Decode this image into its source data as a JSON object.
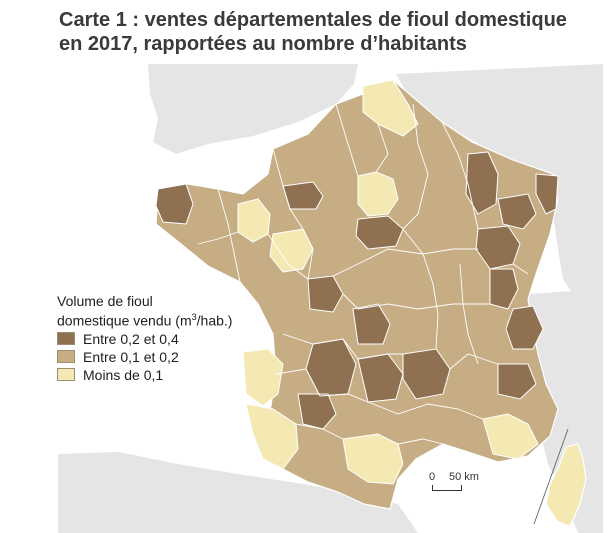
{
  "title": {
    "line1": "Carte 1 : ventes départementales de fioul domestique",
    "line2": "en 2017, rapportées au nombre d’habitants"
  },
  "legend": {
    "title_line1": "Volume de fioul",
    "title_line2_prefix": "domestique vendu (m",
    "title_line2_sup": "3",
    "title_line2_suffix": "/hab.)",
    "items": [
      {
        "label": "Entre 0,2 et 0,4",
        "color": "#8f7050"
      },
      {
        "label": "Entre 0,1 et 0,2",
        "color": "#c6ad84"
      },
      {
        "label": "Moins de 0,1",
        "color": "#f4e9b3"
      }
    ]
  },
  "scale": {
    "zero": "0",
    "distance": "50 km"
  },
  "colors": {
    "sea": "#ffffff",
    "neighbor_land": "#e5e5e5",
    "border": "#ffffff"
  }
}
